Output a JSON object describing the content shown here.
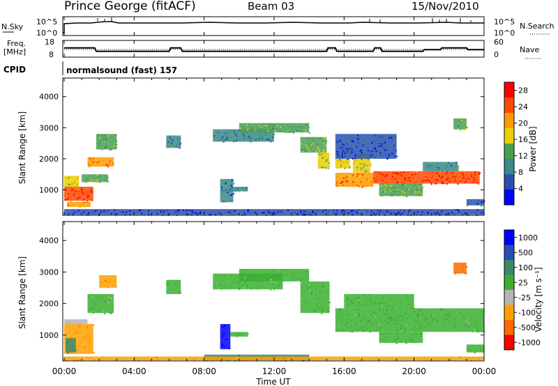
{
  "header": {
    "station": "Prince George (fitACF)",
    "beam": "Beam 03",
    "date": "15/Nov/2010"
  },
  "chart_data": [
    {
      "type": "line",
      "panel": "noise",
      "left_label": "N.Sky",
      "right_label": "N.Search",
      "left_ticks": [
        "10^5",
        "10^0"
      ],
      "right_ticks": [
        "10^5",
        "10^0"
      ],
      "style": "solid black line (N.Sky) and dotted line (N.Search)"
    },
    {
      "type": "line",
      "panel": "frequency",
      "left_label_top": "Freq.",
      "left_label_bottom": "[MHz]",
      "left_ticks": [
        "18",
        "8"
      ],
      "left_ylim": [
        8,
        18
      ],
      "right_label": "Nave",
      "right_ticks": [
        "60",
        "0"
      ],
      "right_ylim": [
        0,
        60
      ],
      "series": [
        {
          "name": "Freq.",
          "x": [
            "00:00",
            "01:45",
            "01:50",
            "06:00",
            "06:05",
            "06:40",
            "06:45",
            "15:00",
            "15:05",
            "15:30",
            "15:35",
            "17:40",
            "17:45",
            "18:05",
            "18:10",
            "20:30",
            "20:35",
            "21:30",
            "21:35",
            "23:00",
            "23:05",
            "24:00"
          ],
          "values": [
            13.5,
            13.5,
            11.5,
            11.5,
            13.5,
            13.5,
            11.5,
            11.5,
            13.5,
            13.5,
            11.5,
            11.5,
            13.5,
            13.5,
            11.5,
            11.5,
            12.5,
            12.5,
            13.5,
            13.5,
            12.5,
            12.5
          ]
        },
        {
          "name": "Nave",
          "style": "dotted",
          "x": [
            "00:00",
            "24:00"
          ],
          "values": [
            26,
            26
          ]
        }
      ]
    },
    {
      "type": "table",
      "panel": "cpid",
      "label": "CPID",
      "text": "normalsound (fast) 157"
    },
    {
      "type": "heatmap",
      "panel": "power",
      "ylabel": "Slant Range [km]",
      "y_ticks": [
        1000,
        2000,
        3000,
        4000
      ],
      "ylim": [
        180,
        4600
      ],
      "colorbar_label": "Power [dB]",
      "colorbar_ticks": [
        4,
        8,
        12,
        16,
        20,
        24,
        28
      ],
      "colorbar_range": [
        0,
        30
      ],
      "colors": [
        "#0000ff",
        "#2850b0",
        "#3a8a8a",
        "#4aa050",
        "#e8d000",
        "#ff9a00",
        "#ff4a00",
        "#ff0000"
      ],
      "regions": [
        {
          "t0": "00:00",
          "t1": "01:40",
          "r0": 650,
          "r1": 1100,
          "power": 26
        },
        {
          "t0": "00:00",
          "t1": "00:50",
          "r0": 1100,
          "r1": 1450,
          "power": 18
        },
        {
          "t0": "00:10",
          "t1": "01:30",
          "r0": 450,
          "r1": 620,
          "power": 20
        },
        {
          "t0": "01:20",
          "t1": "02:50",
          "r0": 1750,
          "r1": 2050,
          "power": 22
        },
        {
          "t0": "01:00",
          "t1": "02:30",
          "r0": 1250,
          "r1": 1500,
          "power": 14
        },
        {
          "t0": "01:50",
          "t1": "03:00",
          "r0": 2300,
          "r1": 2800,
          "power": 12
        },
        {
          "t0": "05:50",
          "t1": "06:40",
          "r0": 2350,
          "r1": 2750,
          "power": 9
        },
        {
          "t0": "08:30",
          "t1": "12:00",
          "r0": 2550,
          "r1": 2950,
          "power": 9
        },
        {
          "t0": "10:00",
          "t1": "14:00",
          "r0": 2850,
          "r1": 3150,
          "power": 12
        },
        {
          "t0": "13:30",
          "t1": "15:00",
          "r0": 2200,
          "r1": 2700,
          "power": 14
        },
        {
          "t0": "14:30",
          "t1": "15:10",
          "r0": 1700,
          "r1": 2200,
          "power": 16
        },
        {
          "t0": "08:55",
          "t1": "09:40",
          "r0": 600,
          "r1": 1350,
          "power": 8
        },
        {
          "t0": "09:30",
          "t1": "10:30",
          "r0": 950,
          "r1": 1100,
          "power": 8
        },
        {
          "t0": "15:30",
          "t1": "16:20",
          "r0": 1700,
          "r1": 2000,
          "power": 18
        },
        {
          "t0": "15:30",
          "t1": "17:40",
          "r0": 1100,
          "r1": 1550,
          "power": 22
        },
        {
          "t0": "16:30",
          "t1": "17:30",
          "r0": 1550,
          "r1": 2150,
          "power": 16
        },
        {
          "t0": "17:40",
          "t1": "23:45",
          "r0": 1200,
          "r1": 1600,
          "power": 26
        },
        {
          "t0": "18:00",
          "t1": "20:30",
          "r0": 800,
          "r1": 1200,
          "power": 14
        },
        {
          "t0": "20:30",
          "t1": "22:30",
          "r0": 1600,
          "r1": 1900,
          "power": 10
        },
        {
          "t0": "15:30",
          "t1": "19:00",
          "r0": 2000,
          "r1": 2800,
          "power": 6
        },
        {
          "t0": "22:15",
          "t1": "23:00",
          "r0": 2950,
          "r1": 3300,
          "power": 14
        },
        {
          "t0": "23:00",
          "t1": "24:00",
          "r0": 500,
          "r1": 700,
          "power": 6
        },
        {
          "t0": "00:00",
          "t1": "24:00",
          "r0": 200,
          "r1": 380,
          "power": 4
        }
      ]
    },
    {
      "type": "heatmap",
      "panel": "velocity",
      "ylabel": "Slant Range [km]",
      "y_ticks": [
        1000,
        2000,
        3000,
        4000
      ],
      "ylim": [
        180,
        4600
      ],
      "colorbar_label": "Velocity [m s⁻¹]",
      "colorbar_ticks": [
        "1000",
        "500",
        "100",
        "25",
        "-25",
        "-100",
        "-500",
        "-1000"
      ],
      "colors": [
        "#0000ff",
        "#2850b0",
        "#3a8a6a",
        "#3ab030",
        "#b4b4b4",
        "#ffa000",
        "#ff6a00",
        "#ff0000"
      ],
      "regions": [
        {
          "t0": "00:00",
          "t1": "01:40",
          "r0": 400,
          "r1": 1350,
          "vel": "-100"
        },
        {
          "t0": "00:05",
          "t1": "00:40",
          "r0": 450,
          "r1": 900,
          "vel": "100"
        },
        {
          "t0": "00:00",
          "t1": "01:20",
          "r0": 1350,
          "r1": 1500,
          "vel": "-25"
        },
        {
          "t0": "01:20",
          "t1": "02:50",
          "r0": 1700,
          "r1": 2300,
          "vel": "25"
        },
        {
          "t0": "02:00",
          "t1": "03:00",
          "r0": 2500,
          "r1": 2900,
          "vel": "-100"
        },
        {
          "t0": "05:50",
          "t1": "06:40",
          "r0": 2300,
          "r1": 2750,
          "vel": "25"
        },
        {
          "t0": "08:30",
          "t1": "12:30",
          "r0": 2450,
          "r1": 2950,
          "vel": "25"
        },
        {
          "t0": "10:00",
          "t1": "14:00",
          "r0": 2700,
          "r1": 3100,
          "vel": "25"
        },
        {
          "t0": "13:30",
          "t1": "15:10",
          "r0": 1700,
          "r1": 2700,
          "vel": "25"
        },
        {
          "t0": "08:55",
          "t1": "09:30",
          "r0": 550,
          "r1": 1350,
          "vel": "1000"
        },
        {
          "t0": "09:30",
          "t1": "10:30",
          "r0": 950,
          "r1": 1100,
          "vel": "25"
        },
        {
          "t0": "15:30",
          "t1": "24:00",
          "r0": 1100,
          "r1": 1850,
          "vel": "25"
        },
        {
          "t0": "16:00",
          "t1": "20:00",
          "r0": 1850,
          "r1": 2300,
          "vel": "25"
        },
        {
          "t0": "18:00",
          "t1": "20:30",
          "r0": 750,
          "r1": 1100,
          "vel": "25"
        },
        {
          "t0": "22:15",
          "t1": "23:00",
          "r0": 2950,
          "r1": 3300,
          "vel": "-500"
        },
        {
          "t0": "23:00",
          "t1": "24:00",
          "r0": 450,
          "r1": 700,
          "vel": "25"
        },
        {
          "t0": "08:00",
          "t1": "14:00",
          "r0": 200,
          "r1": 380,
          "vel": "100"
        },
        {
          "t0": "00:00",
          "t1": "24:00",
          "r0": 200,
          "r1": 320,
          "vel": "-100"
        }
      ]
    }
  ],
  "x_axis": {
    "label": "Time UT",
    "ticks": [
      "00:00",
      "04:00",
      "08:00",
      "12:00",
      "16:00",
      "20:00",
      "00:00"
    ],
    "xlim_hours": [
      0,
      24
    ]
  }
}
